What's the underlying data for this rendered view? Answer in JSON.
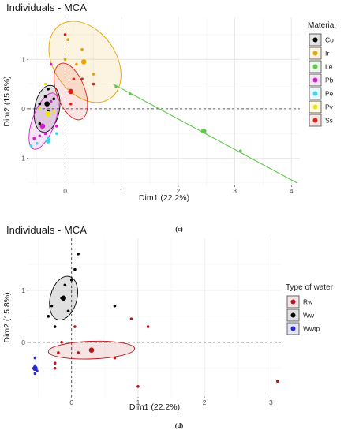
{
  "chart_data": [
    {
      "type": "scatter",
      "panel": "c",
      "title": "Individuals - MCA",
      "xlabel": "Dim1 (22.2%)",
      "ylabel": "Dim2 (15.8%)",
      "xlim": [
        -0.65,
        4.15
      ],
      "ylim": [
        -1.55,
        1.85
      ],
      "x_ticks": [
        0,
        1,
        2,
        3,
        4
      ],
      "y_ticks": [
        -1,
        0,
        1
      ],
      "grid": true,
      "legend": {
        "title": "Material",
        "position": "right"
      },
      "series": [
        {
          "name": "Co",
          "color": "#000000",
          "points": [
            [
              -0.45,
              0.1
            ],
            [
              -0.35,
              0.25
            ],
            [
              -0.3,
              -0.05
            ],
            [
              -0.45,
              -0.3
            ],
            [
              -0.2,
              0.2
            ],
            [
              -0.3,
              0.4
            ]
          ],
          "centroid": [
            -0.32,
            0.1
          ],
          "ellipse": {
            "cx": -0.32,
            "cy": 0.0,
            "rx": 0.22,
            "ry": 0.48,
            "angle": 10
          }
        },
        {
          "name": "Ir",
          "color": "#E6A400",
          "points": [
            [
              0.05,
              1.4
            ],
            [
              0.0,
              1.0
            ],
            [
              0.2,
              0.9
            ],
            [
              0.5,
              0.7
            ],
            [
              0.3,
              1.2
            ]
          ],
          "centroid": [
            0.33,
            0.95
          ],
          "ellipse": {
            "cx": 0.35,
            "cy": 0.95,
            "rx": 0.55,
            "ry": 0.9,
            "angle": -35
          }
        },
        {
          "name": "Le",
          "color": "#5FC74A",
          "points": [
            [
              0.9,
              0.45
            ],
            [
              1.15,
              0.3
            ],
            [
              3.1,
              -0.85
            ]
          ],
          "centroid": [
            2.45,
            -0.45
          ],
          "line": [
            [
              0.85,
              0.5
            ],
            [
              4.1,
              -1.5
            ]
          ]
        },
        {
          "name": "Pb",
          "color": "#D21DD2",
          "points": [
            [
              -0.25,
              0.9
            ],
            [
              -0.35,
              -0.5
            ],
            [
              -0.55,
              -0.6
            ],
            [
              -0.15,
              -0.35
            ],
            [
              -0.45,
              -0.55
            ],
            [
              -0.25,
              0.15
            ]
          ],
          "centroid": [
            -0.4,
            -0.35
          ],
          "ellipse": {
            "cx": -0.38,
            "cy": -0.25,
            "rx": 0.2,
            "ry": 0.6,
            "angle": 20
          }
        },
        {
          "name": "Pe",
          "color": "#3FD6E6",
          "points": [
            [
              -0.6,
              -0.75
            ],
            [
              -0.5,
              -0.7
            ],
            [
              -0.3,
              -0.6
            ],
            [
              -0.15,
              -0.5
            ]
          ],
          "centroid": [
            -0.3,
            -0.65
          ]
        },
        {
          "name": "Pv",
          "color": "#F2E600",
          "points": [
            [
              -0.35,
              0.5
            ],
            [
              -0.45,
              0.0
            ],
            [
              -0.3,
              -0.1
            ],
            [
              -0.2,
              -0.05
            ]
          ],
          "centroid": [
            -0.3,
            -0.1
          ]
        },
        {
          "name": "Ss",
          "color": "#E0201B",
          "points": [
            [
              0.0,
              1.5
            ],
            [
              0.3,
              0.6
            ],
            [
              0.15,
              0.6
            ],
            [
              0.1,
              0.1
            ],
            [
              0.5,
              0.5
            ]
          ],
          "centroid": [
            0.1,
            0.35
          ],
          "ellipse": {
            "cx": 0.1,
            "cy": 0.35,
            "rx": 0.25,
            "ry": 0.6,
            "angle": -20
          }
        }
      ]
    },
    {
      "type": "scatter",
      "panel": "d",
      "title": "Individuals - MCA",
      "xlabel": "Dim1 (22.2%)",
      "ylabel": "Dim2 (15.8%)",
      "xlim": [
        -0.65,
        3.15
      ],
      "ylim": [
        -1.05,
        2.0
      ],
      "x_ticks": [
        0,
        1,
        2,
        3
      ],
      "y_ticks": [
        0,
        1
      ],
      "grid": true,
      "legend": {
        "title": "Type of water",
        "position": "right"
      },
      "series": [
        {
          "name": "Rw",
          "color": "#B2171B",
          "points": [
            [
              0.9,
              0.45
            ],
            [
              1.15,
              0.3
            ],
            [
              0.65,
              -0.3
            ],
            [
              0.05,
              0.3
            ],
            [
              -0.25,
              -0.4
            ],
            [
              -0.2,
              -0.2
            ],
            [
              -0.25,
              -0.5
            ],
            [
              3.1,
              -0.75
            ],
            [
              1.0,
              -0.85
            ],
            [
              -0.15,
              0.0
            ],
            [
              0.1,
              -0.2
            ]
          ],
          "centroid": [
            0.3,
            -0.15
          ],
          "ellipse": {
            "cx": 0.3,
            "cy": -0.15,
            "rx": 0.65,
            "ry": 0.17,
            "angle": -2
          }
        },
        {
          "name": "Ww",
          "color": "#000000",
          "points": [
            [
              0.1,
              1.7
            ],
            [
              0.05,
              1.4
            ],
            [
              -0.1,
              1.1
            ],
            [
              -0.3,
              0.7
            ],
            [
              -0.35,
              0.5
            ],
            [
              0.65,
              0.7
            ],
            [
              -0.15,
              0.85
            ],
            [
              -0.05,
              0.6
            ],
            [
              0.0,
              1.2
            ],
            [
              -0.25,
              0.3
            ]
          ],
          "centroid": [
            -0.12,
            0.85
          ],
          "ellipse": {
            "cx": -0.12,
            "cy": 0.85,
            "rx": 0.2,
            "ry": 0.43,
            "angle": 15
          }
        },
        {
          "name": "Wwtp",
          "color": "#2A2ACF",
          "points": [
            [
              -0.55,
              -0.3
            ],
            [
              -0.55,
              -0.45
            ],
            [
              -0.55,
              -0.6
            ],
            [
              -0.57,
              -0.5
            ],
            [
              -0.52,
              -0.55
            ]
          ],
          "centroid": [
            -0.55,
            -0.5
          ]
        }
      ]
    }
  ],
  "captions": {
    "c": "(c)",
    "d": "(d)"
  }
}
